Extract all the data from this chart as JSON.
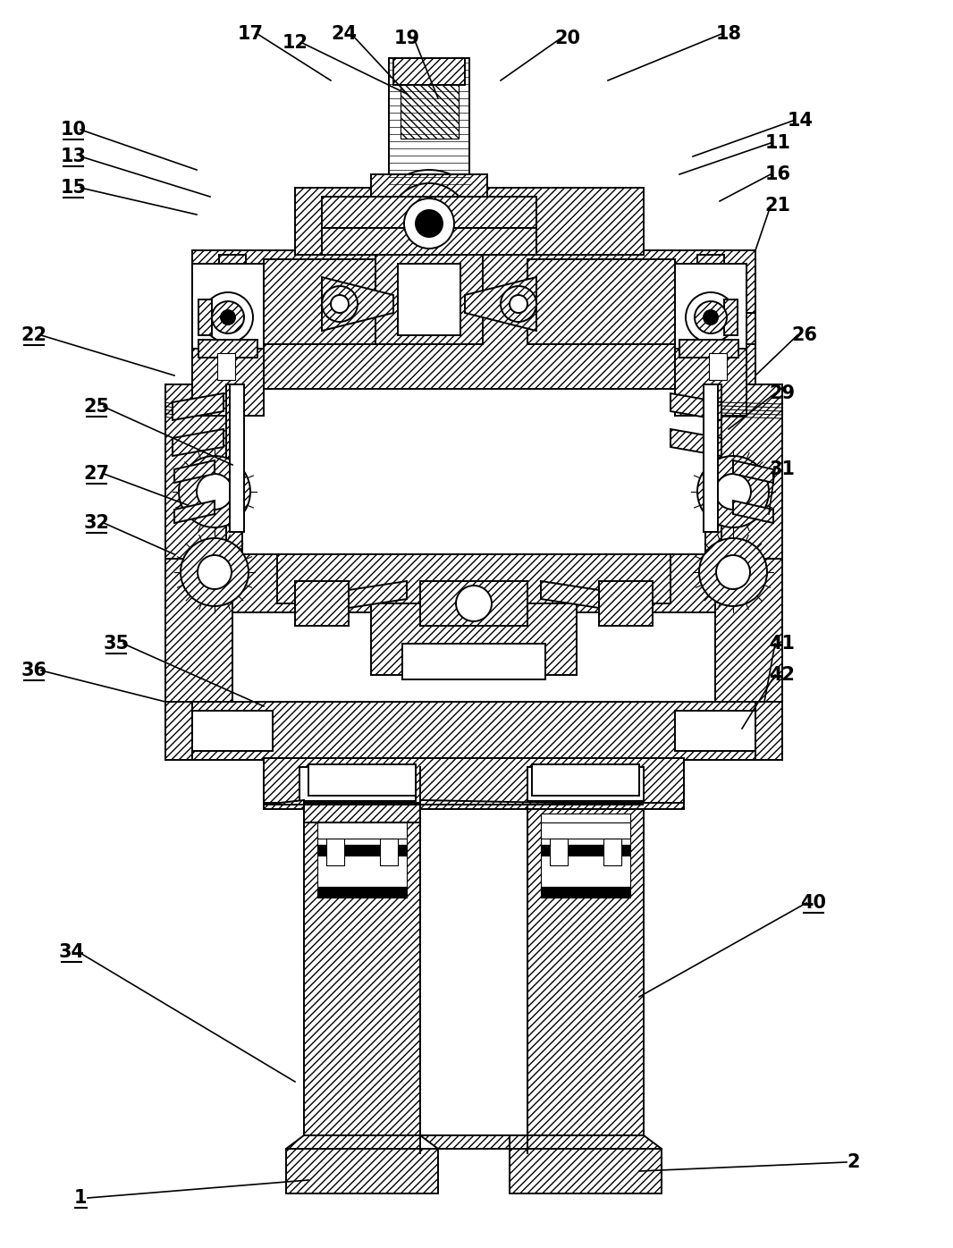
{
  "figsize": [
    10.66,
    13.96
  ],
  "dpi": 100,
  "bg": "#ffffff",
  "lw_main": 1.4,
  "lw_thin": 0.8,
  "hatch": "////",
  "labels": [
    [
      "1",
      90,
      1340,
      345,
      1320,
      true
    ],
    [
      "2",
      955,
      1300,
      715,
      1310,
      false
    ],
    [
      "10",
      82,
      145,
      220,
      190,
      true
    ],
    [
      "11",
      870,
      160,
      760,
      195,
      false
    ],
    [
      "12",
      330,
      48,
      455,
      105,
      false
    ],
    [
      "13",
      82,
      175,
      235,
      220,
      true
    ],
    [
      "14",
      895,
      135,
      775,
      175,
      false
    ],
    [
      "15",
      82,
      210,
      220,
      240,
      true
    ],
    [
      "16",
      870,
      195,
      805,
      225,
      false
    ],
    [
      "17",
      280,
      38,
      370,
      90,
      false
    ],
    [
      "18",
      815,
      38,
      680,
      90,
      false
    ],
    [
      "19",
      455,
      43,
      490,
      110,
      false
    ],
    [
      "20",
      635,
      43,
      560,
      90,
      false
    ],
    [
      "21",
      870,
      230,
      845,
      280,
      false
    ],
    [
      "22",
      38,
      375,
      195,
      420,
      true
    ],
    [
      "24",
      385,
      38,
      460,
      110,
      false
    ],
    [
      "25",
      108,
      455,
      260,
      520,
      true
    ],
    [
      "26",
      900,
      375,
      845,
      420,
      false
    ],
    [
      "27",
      108,
      530,
      210,
      565,
      true
    ],
    [
      "29",
      875,
      440,
      815,
      480,
      false
    ],
    [
      "31",
      875,
      525,
      860,
      575,
      false
    ],
    [
      "32",
      108,
      585,
      195,
      620,
      true
    ],
    [
      "34",
      80,
      1065,
      330,
      1210,
      true
    ],
    [
      "35",
      130,
      720,
      295,
      790,
      true
    ],
    [
      "36",
      38,
      750,
      185,
      785,
      true
    ],
    [
      "40",
      910,
      1010,
      715,
      1115,
      true
    ],
    [
      "41",
      875,
      720,
      855,
      785,
      false
    ],
    [
      "42",
      875,
      755,
      830,
      815,
      false
    ]
  ]
}
